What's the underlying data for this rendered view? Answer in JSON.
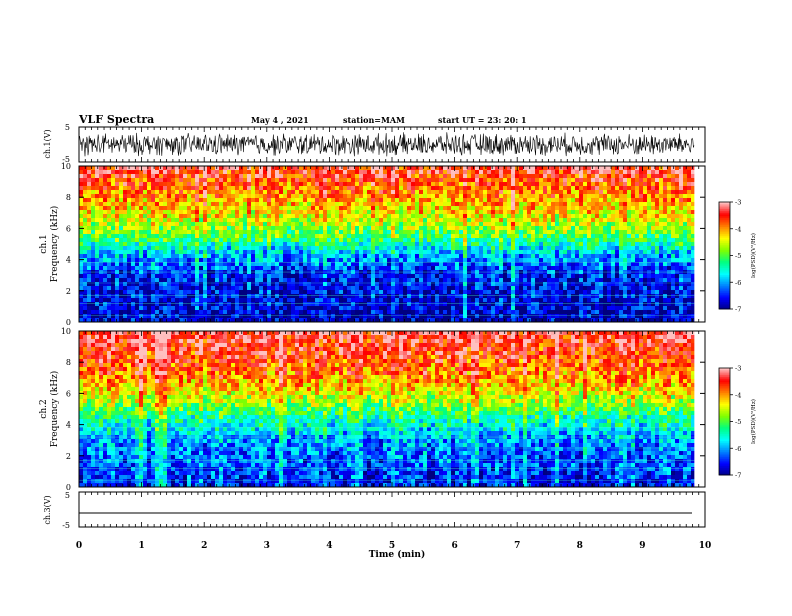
{
  "header": {
    "title": "VLF Spectra",
    "date": "May 4 , 2021",
    "station": "station=MAM",
    "start": "start UT = 23: 20: 1"
  },
  "chart_data": [
    {
      "type": "line",
      "panel": "ch1-waveform",
      "ylabel": "ch.1(V)",
      "ylim": [
        -5,
        5
      ],
      "y_ticks": [
        "5",
        "-5"
      ],
      "description_values": {
        "amplitude_range": [
          -3,
          3
        ]
      }
    },
    {
      "type": "heatmap",
      "panel": "ch1-spectrogram",
      "ylabel": "ch.1 Frequency (kHz)",
      "ylim": [
        0,
        10
      ],
      "y_ticks": [
        "0",
        "2",
        "4",
        "6",
        "8",
        "10"
      ],
      "colorbar": {
        "label": "log(PSD)(V²/Hz)",
        "range": [
          -7,
          -3
        ],
        "ticks": [
          "-3",
          "-4",
          "-5",
          "-6",
          "-7"
        ]
      },
      "level_profile": [
        {
          "freq_khz": 0,
          "log_psd": -6.8
        },
        {
          "freq_khz": 3,
          "log_psd": -6.5
        },
        {
          "freq_khz": 4.5,
          "log_psd": -5.8
        },
        {
          "freq_khz": 5.5,
          "log_psd": -5.0
        },
        {
          "freq_khz": 7,
          "log_psd": -4.3
        },
        {
          "freq_khz": 10,
          "log_psd": -3.3
        }
      ]
    },
    {
      "type": "heatmap",
      "panel": "ch2-spectrogram",
      "ylabel": "ch.2 Frequency (kHz)",
      "ylim": [
        0,
        10
      ],
      "y_ticks": [
        "0",
        "2",
        "4",
        "6",
        "8",
        "10"
      ],
      "colorbar": {
        "label": "log(PSD)(V²/Hz)",
        "range": [
          -7,
          -3
        ],
        "ticks": [
          "-3",
          "-4",
          "-5",
          "-6",
          "-7"
        ]
      },
      "level_profile": [
        {
          "freq_khz": 0,
          "log_psd": -6.5
        },
        {
          "freq_khz": 3,
          "log_psd": -6.0
        },
        {
          "freq_khz": 4.5,
          "log_psd": -5.3
        },
        {
          "freq_khz": 5.5,
          "log_psd": -4.6
        },
        {
          "freq_khz": 7,
          "log_psd": -3.9
        },
        {
          "freq_khz": 10,
          "log_psd": -3.2
        }
      ]
    },
    {
      "type": "line",
      "panel": "ch3-waveform",
      "ylabel": "ch.3(V)",
      "ylim": [
        -5,
        5
      ],
      "y_ticks": [
        "5",
        "-5"
      ],
      "values": {
        "constant": -1.5
      }
    }
  ],
  "x_axis": {
    "label": "Time (min)",
    "range": [
      0,
      10
    ],
    "ticks": [
      "0",
      "1",
      "2",
      "3",
      "4",
      "5",
      "6",
      "7",
      "8",
      "9",
      "10"
    ],
    "data_end": 9.83
  },
  "colors": {
    "colormap": [
      "#000080",
      "#0000ff",
      "#0080ff",
      "#00ffff",
      "#00ff80",
      "#80ff00",
      "#ffff00",
      "#ff8000",
      "#ff0000",
      "#ffc0c0"
    ]
  }
}
